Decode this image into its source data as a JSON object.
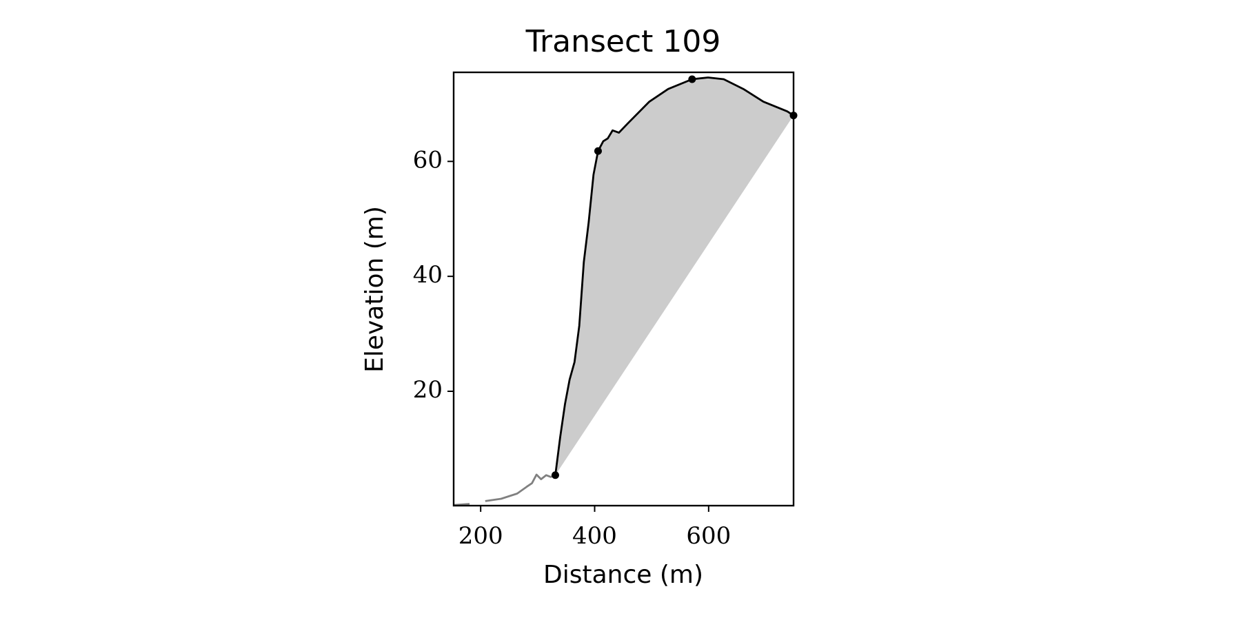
{
  "chart_data": {
    "type": "line",
    "title": "Transect 109",
    "xlabel": "Distance (m)",
    "ylabel": "Elevation (m)",
    "xlim": [
      152.6,
      749
    ],
    "ylim": [
      0.1,
      75.5
    ],
    "xticks": [
      200,
      400,
      600
    ],
    "yticks": [
      20,
      40,
      60
    ],
    "grid": false,
    "series": [
      {
        "color": "#808080",
        "line": true,
        "marker": false,
        "x": [
          152.6,
          180.5,
          null,
          208,
          236,
          264,
          281,
          290,
          298,
          306,
          315,
          323,
          331
        ],
        "values": [
          0.2,
          0.4,
          null,
          0.9,
          1.3,
          2.2,
          3.4,
          4.0,
          5.5,
          4.7,
          5.4,
          5.1,
          5.4
        ]
      },
      {
        "color": "#000000",
        "line": true,
        "marker": false,
        "fill": "#cccccc",
        "x": [
          331,
          339.5,
          348,
          356,
          364.7,
          373,
          381,
          389.5,
          398,
          406,
          415,
          423,
          431.5,
          442.5,
          459,
          496,
          529,
          571,
          599,
          626.5,
          661,
          696,
          738,
          749
        ],
        "values": [
          5.4,
          12.0,
          17.8,
          22.0,
          25.1,
          31.4,
          42.5,
          49.4,
          57.7,
          61.8,
          63.5,
          64.0,
          65.4,
          65.0,
          66.7,
          70.4,
          72.6,
          74.3,
          74.6,
          74.3,
          72.6,
          70.4,
          68.7,
          68.0
        ]
      },
      {
        "color": "#000000",
        "line": false,
        "marker": true,
        "x": [
          331,
          406,
          571,
          749
        ],
        "values": [
          5.4,
          61.8,
          74.3,
          68.0
        ]
      }
    ]
  }
}
